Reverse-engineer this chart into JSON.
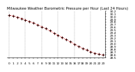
{
  "title": "Milwaukee Weather Barometric Pressure per Hour (Last 24 Hours)",
  "hours": [
    0,
    1,
    2,
    3,
    4,
    5,
    6,
    7,
    8,
    9,
    10,
    11,
    12,
    13,
    14,
    15,
    16,
    17,
    18,
    19,
    20,
    21,
    22,
    23
  ],
  "pressure": [
    30.05,
    30.02,
    29.98,
    29.93,
    29.88,
    29.82,
    29.76,
    29.7,
    29.63,
    29.56,
    29.48,
    29.4,
    29.32,
    29.24,
    29.16,
    29.08,
    29.0,
    28.92,
    28.85,
    28.78,
    28.72,
    28.67,
    28.63,
    28.6
  ],
  "line_color": "#ff0000",
  "marker_color": "#ff0000",
  "cross_color": "#000000",
  "bg_color": "#ffffff",
  "grid_color": "#999999",
  "ylim": [
    28.5,
    30.2
  ],
  "ytick_step": 0.1,
  "ytick_min": 28.5,
  "ytick_max": 30.2,
  "title_fontsize": 3.8,
  "tick_fontsize": 3.2,
  "grid_xticks": [
    0,
    4,
    8,
    12,
    16,
    20
  ],
  "xlim": [
    -0.5,
    23.5
  ]
}
